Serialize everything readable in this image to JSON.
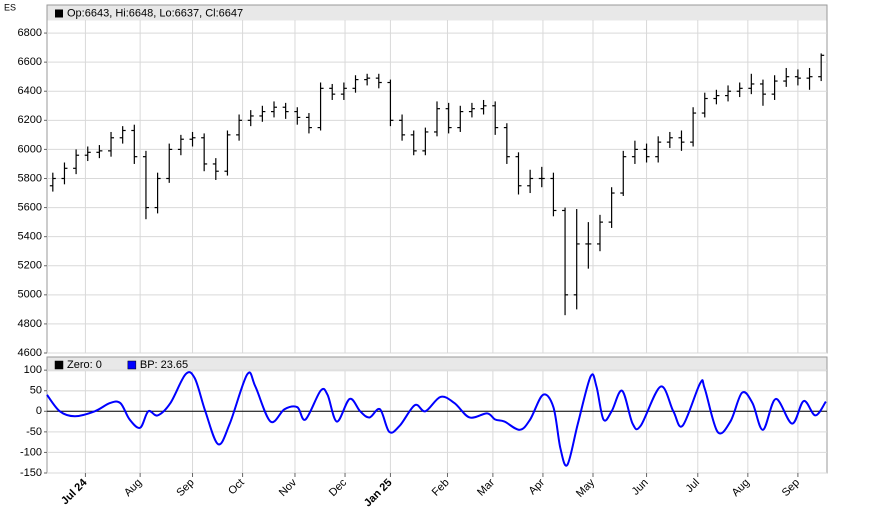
{
  "symbol": "ES",
  "chart_data": [
    {
      "type": "ohlc",
      "legend": "Op:6643, Hi:6648, Lo:6637, Cl:6647",
      "color": "#000000",
      "open": [
        5750,
        5800,
        5870,
        5960,
        5980,
        5990,
        6080,
        6130,
        5950,
        5600,
        5800,
        6000,
        6070,
        6080,
        5900,
        5850,
        6100,
        6200,
        6230,
        6260,
        6290,
        6260,
        6220,
        6150,
        6420,
        6380,
        6420,
        6480,
        6490,
        6460,
        6200,
        6100,
        5990,
        6120,
        6280,
        6150,
        6260,
        6280,
        6300,
        6150,
        5950,
        5750,
        5800,
        5800,
        5580,
        5000,
        5350,
        5350,
        5500,
        5700,
        5950,
        6000,
        5950,
        6050,
        6080,
        6050,
        6250,
        6350,
        6370,
        6400,
        6420,
        6450,
        6380,
        6470,
        6500,
        6490,
        6500
      ],
      "high": [
        5840,
        5910,
        6000,
        6020,
        6030,
        6120,
        6160,
        6170,
        5990,
        5840,
        6040,
        6100,
        6120,
        6110,
        5940,
        6130,
        6240,
        6270,
        6300,
        6330,
        6320,
        6290,
        6250,
        6460,
        6450,
        6460,
        6510,
        6520,
        6520,
        6480,
        6240,
        6130,
        6150,
        6330,
        6320,
        6300,
        6320,
        6340,
        6330,
        6180,
        5980,
        5860,
        5880,
        5840,
        5600,
        5590,
        5500,
        5550,
        5740,
        5990,
        6060,
        6040,
        6090,
        6120,
        6130,
        6290,
        6390,
        6410,
        6440,
        6460,
        6520,
        6480,
        6510,
        6560,
        6550,
        6560,
        6660
      ],
      "low": [
        5710,
        5760,
        5830,
        5920,
        5940,
        5950,
        6040,
        5900,
        5520,
        5560,
        5770,
        5960,
        6020,
        5850,
        5790,
        5820,
        6060,
        6160,
        6190,
        6220,
        6210,
        6170,
        6110,
        6130,
        6340,
        6340,
        6390,
        6440,
        6420,
        6160,
        6060,
        5960,
        5960,
        6090,
        6110,
        6120,
        6220,
        6240,
        6100,
        5900,
        5690,
        5700,
        5740,
        5540,
        4860,
        4900,
        5180,
        5300,
        5460,
        5680,
        5900,
        5910,
        5910,
        6010,
        5990,
        6020,
        6220,
        6310,
        6330,
        6360,
        6380,
        6300,
        6340,
        6430,
        6440,
        6410,
        6470
      ],
      "close": [
        5800,
        5870,
        5960,
        5980,
        5990,
        6080,
        6130,
        5950,
        5600,
        5800,
        6000,
        6070,
        6080,
        5900,
        5850,
        6100,
        6200,
        6230,
        6260,
        6290,
        6260,
        6220,
        6150,
        6420,
        6380,
        6420,
        6480,
        6490,
        6460,
        6200,
        6100,
        5990,
        6120,
        6280,
        6150,
        6260,
        6280,
        6300,
        6150,
        5950,
        5750,
        5800,
        5800,
        5580,
        5000,
        5350,
        5350,
        5500,
        5700,
        5950,
        6000,
        5950,
        6050,
        6080,
        6050,
        6250,
        6350,
        6370,
        6400,
        6420,
        6450,
        6380,
        6470,
        6500,
        6490,
        6500,
        6647
      ],
      "xlim": [
        -0.5,
        66.5
      ],
      "ylim": [
        4600,
        6993
      ],
      "yticks": [
        4600,
        4800,
        5000,
        5200,
        5400,
        5600,
        5800,
        6000,
        6200,
        6400,
        6600,
        6800
      ],
      "xticks": [
        {
          "value": 2.8,
          "label": "Jul 24"
        },
        {
          "value": 7.5,
          "label": "Aug"
        },
        {
          "value": 12.0,
          "label": "Sep"
        },
        {
          "value": 16.3,
          "label": "Oct"
        },
        {
          "value": 20.8,
          "label": "Nov"
        },
        {
          "value": 25.1,
          "label": "Dec"
        },
        {
          "value": 29.0,
          "label": "Jan 25"
        },
        {
          "value": 33.9,
          "label": "Feb"
        },
        {
          "value": 37.8,
          "label": "Mar"
        },
        {
          "value": 42.1,
          "label": "Apr"
        },
        {
          "value": 46.4,
          "label": "May"
        },
        {
          "value": 51.0,
          "label": "Jun"
        },
        {
          "value": 55.4,
          "label": "Jul"
        },
        {
          "value": 59.7,
          "label": "Aug"
        },
        {
          "value": 64.0,
          "label": "Sep"
        }
      ],
      "grid": true
    },
    {
      "type": "line",
      "xlim": [
        -0.5,
        66.5
      ],
      "ylim": [
        -150,
        132
      ],
      "yticks": [
        -150,
        -100,
        -50,
        0,
        50,
        100
      ],
      "grid": true,
      "series": [
        {
          "name": "Zero: 0",
          "color": "#000000",
          "x": [
            -0.5,
            66.5
          ],
          "values": [
            0,
            0
          ]
        },
        {
          "name": "BP: 23.65",
          "color": "#0000ff",
          "x": [
            -0.5,
            0.6,
            1.9,
            3.6,
            4.9,
            5.8,
            6.6,
            7.5,
            8.2,
            9.0,
            10.1,
            11.4,
            12.2,
            13.1,
            14.2,
            15.2,
            16.7,
            17.4,
            18.7,
            19.9,
            21.0,
            21.7,
            23.0,
            23.6,
            24.4,
            25.5,
            26.4,
            27.2,
            28.1,
            28.9,
            29.8,
            31.1,
            32.0,
            33.3,
            34.5,
            35.8,
            37.3,
            38.0,
            38.8,
            40.1,
            41.0,
            42.1,
            43.0,
            43.6,
            44.2,
            45.1,
            46.2,
            46.7,
            47.3,
            48.0,
            48.9,
            49.8,
            50.5,
            52.2,
            53.3,
            54.1,
            55.6,
            56.0,
            57.1,
            58.2,
            59.2,
            60.1,
            61.0,
            62.1,
            63.5,
            64.5,
            65.5,
            66.4
          ],
          "values": [
            40,
            0,
            -12,
            0,
            20,
            20,
            -20,
            -40,
            0,
            -10,
            20,
            90,
            80,
            0,
            -80,
            -30,
            90,
            60,
            -25,
            5,
            10,
            -20,
            50,
            40,
            -25,
            30,
            0,
            -15,
            5,
            -50,
            -35,
            15,
            0,
            35,
            20,
            -15,
            -5,
            -20,
            -25,
            -45,
            -20,
            40,
            10,
            -90,
            -130,
            -30,
            85,
            60,
            -20,
            0,
            50,
            -30,
            -35,
            60,
            0,
            -35,
            68,
            55,
            -50,
            -25,
            45,
            20,
            -45,
            30,
            -30,
            25,
            -10,
            23.65
          ]
        }
      ]
    }
  ]
}
